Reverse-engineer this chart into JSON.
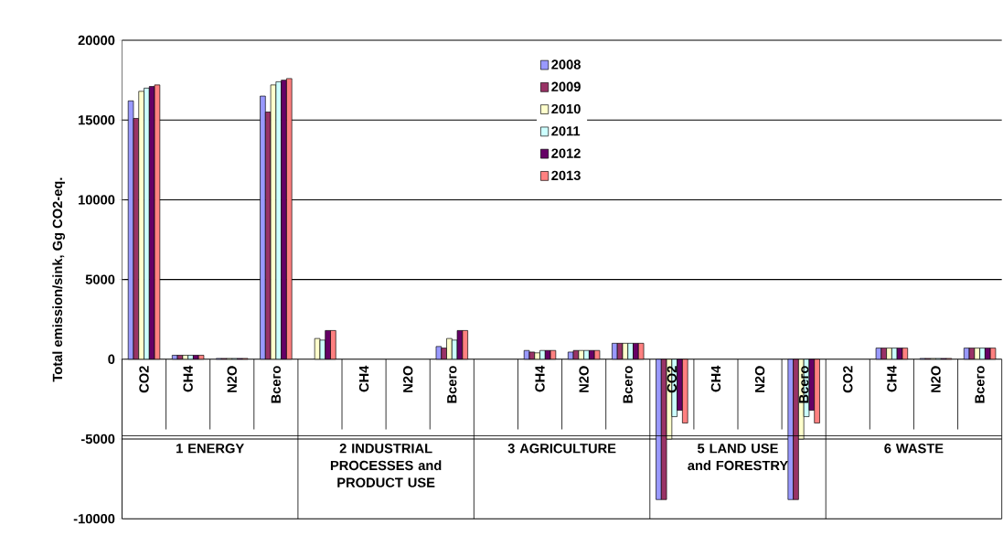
{
  "chart_data": {
    "type": "bar",
    "ylabel": "Total emission/sink, Gg CO2-eq.",
    "categories": [
      "CO2",
      "CH4",
      "N2O",
      "Всего",
      null,
      "CH4",
      "N2O",
      "Всего",
      null,
      "CH4",
      "N2O",
      "Всего",
      "CO2",
      "CH4",
      "N2O",
      "Всего",
      "CO2",
      "CH4",
      "N2O",
      "Всего"
    ],
    "annotations": [
      "1    ENERGY",
      "2  INDUSTRIAL PROCESSES and PRODUCT USE",
      "3  AGRICULTURE",
      "5 LAND USE and FORESTRY",
      "6  WASTE"
    ],
    "series": [
      {
        "name": "2008",
        "color": "#9999ff",
        "values": [
          16200,
          250,
          50,
          16500,
          null,
          null,
          null,
          800,
          null,
          550,
          450,
          1000,
          -8800,
          null,
          null,
          -8800,
          null,
          700,
          50,
          700
        ]
      },
      {
        "name": "2009",
        "color": "#993366",
        "values": [
          15100,
          250,
          50,
          15500,
          null,
          null,
          null,
          700,
          null,
          450,
          550,
          1000,
          -8800,
          null,
          null,
          -8800,
          null,
          700,
          50,
          700
        ]
      },
      {
        "name": "2010",
        "color": "#ffffcc",
        "values": [
          16800,
          250,
          50,
          17200,
          1300,
          null,
          null,
          1300,
          null,
          400,
          550,
          1000,
          -5000,
          null,
          null,
          -5000,
          null,
          700,
          50,
          700
        ]
      },
      {
        "name": "2011",
        "color": "#ccffff",
        "values": [
          17000,
          250,
          50,
          17400,
          1200,
          null,
          null,
          1200,
          null,
          550,
          550,
          1000,
          -3600,
          null,
          null,
          -3600,
          null,
          700,
          50,
          700
        ]
      },
      {
        "name": "2012",
        "color": "#660066",
        "values": [
          17100,
          250,
          50,
          17500,
          1800,
          null,
          null,
          1800,
          null,
          550,
          550,
          1000,
          -3200,
          null,
          null,
          -3200,
          null,
          700,
          50,
          700
        ]
      },
      {
        "name": "2013",
        "color": "#ff8080",
        "values": [
          17200,
          250,
          50,
          17600,
          1800,
          null,
          null,
          1800,
          null,
          550,
          550,
          1000,
          -4000,
          null,
          null,
          -4000,
          null,
          700,
          50,
          700
        ]
      }
    ],
    "ylim": [
      -10000,
      20000
    ],
    "yticks": [
      -10000,
      -5000,
      0,
      5000,
      10000,
      15000,
      20000
    ],
    "grid": "y",
    "legend": "top"
  }
}
